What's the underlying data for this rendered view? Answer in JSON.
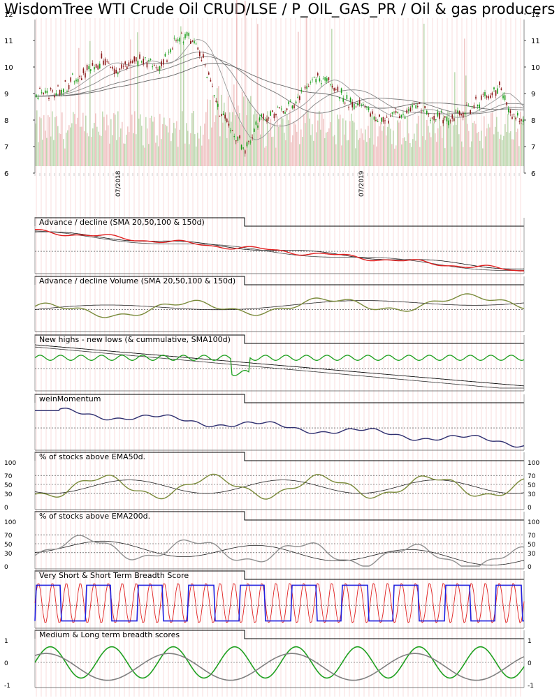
{
  "title": "WisdomTree WTI Crude Oil CRUD/LSE / P_OIL_GAS_PR / Oil & gas producers",
  "chart_data": [
    {
      "type": "candlestick",
      "panel": "price",
      "y_ticks": [
        6,
        7,
        8,
        9,
        10,
        11,
        12
      ],
      "ylim": [
        6,
        12
      ],
      "x_ticks": [
        "07/2018",
        "07/2019"
      ],
      "overlays": [
        "SMA",
        "SMA",
        "SMA",
        "SMA"
      ],
      "volume_bars": true,
      "approx_close": [
        {
          "x": 0.0,
          "y": 8.9
        },
        {
          "x": 0.05,
          "y": 9.1
        },
        {
          "x": 0.08,
          "y": 9.6
        },
        {
          "x": 0.12,
          "y": 10.0
        },
        {
          "x": 0.14,
          "y": 10.4
        },
        {
          "x": 0.17,
          "y": 9.8
        },
        {
          "x": 0.19,
          "y": 10.2
        },
        {
          "x": 0.22,
          "y": 10.3
        },
        {
          "x": 0.25,
          "y": 9.9
        },
        {
          "x": 0.28,
          "y": 10.8
        },
        {
          "x": 0.31,
          "y": 11.3
        },
        {
          "x": 0.34,
          "y": 10.4
        },
        {
          "x": 0.36,
          "y": 9.3
        },
        {
          "x": 0.38,
          "y": 8.2
        },
        {
          "x": 0.41,
          "y": 7.3
        },
        {
          "x": 0.43,
          "y": 6.9
        },
        {
          "x": 0.45,
          "y": 7.8
        },
        {
          "x": 0.48,
          "y": 8.2
        },
        {
          "x": 0.51,
          "y": 8.4
        },
        {
          "x": 0.54,
          "y": 8.9
        },
        {
          "x": 0.57,
          "y": 9.6
        },
        {
          "x": 0.6,
          "y": 9.5
        },
        {
          "x": 0.63,
          "y": 8.8
        },
        {
          "x": 0.66,
          "y": 8.6
        },
        {
          "x": 0.69,
          "y": 8.2
        },
        {
          "x": 0.72,
          "y": 8.0
        },
        {
          "x": 0.75,
          "y": 8.3
        },
        {
          "x": 0.78,
          "y": 8.5
        },
        {
          "x": 0.81,
          "y": 8.2
        },
        {
          "x": 0.84,
          "y": 8.0
        },
        {
          "x": 0.87,
          "y": 8.3
        },
        {
          "x": 0.9,
          "y": 8.6
        },
        {
          "x": 0.93,
          "y": 9.0
        },
        {
          "x": 0.95,
          "y": 9.3
        },
        {
          "x": 0.97,
          "y": 8.2
        },
        {
          "x": 1.0,
          "y": 8.0
        }
      ]
    },
    {
      "type": "line",
      "panel": "breadth",
      "title": "Advance / decline (SMA 20,50,100 & 150d)",
      "series_color": "#e02020"
    },
    {
      "type": "line",
      "panel": "breadth",
      "title": "Advance / decline Volume (SMA 20,50,100 & 150d)",
      "series_color": "#7a8a3a"
    },
    {
      "type": "line",
      "panel": "breadth",
      "title": "New highs - new lows (& cummulative, SMA100d)",
      "series_color": "#20a020"
    },
    {
      "type": "line",
      "panel": "breadth",
      "title": "weinMomentum",
      "series_color": "#303070"
    },
    {
      "type": "line",
      "panel": "breadth",
      "title": "% of stocks above EMA50d.",
      "y_ticks": [
        0,
        30,
        50,
        70,
        100
      ],
      "series_color": "#7a8a3a"
    },
    {
      "type": "line",
      "panel": "breadth",
      "title": "% of stocks above EMA200d.",
      "y_ticks": [
        0,
        30,
        50,
        70,
        100
      ],
      "series_color": "#909090"
    },
    {
      "type": "line",
      "panel": "breadth",
      "title": "Very Short & Short Term Breadth Score",
      "series_colors": [
        "#e02020",
        "#2020e0"
      ]
    },
    {
      "type": "line",
      "panel": "breadth",
      "title": "Medium & Long term breadth scores",
      "y_ticks": [
        -1,
        0,
        1
      ],
      "series_colors": [
        "#20a020",
        "#808080"
      ]
    }
  ]
}
